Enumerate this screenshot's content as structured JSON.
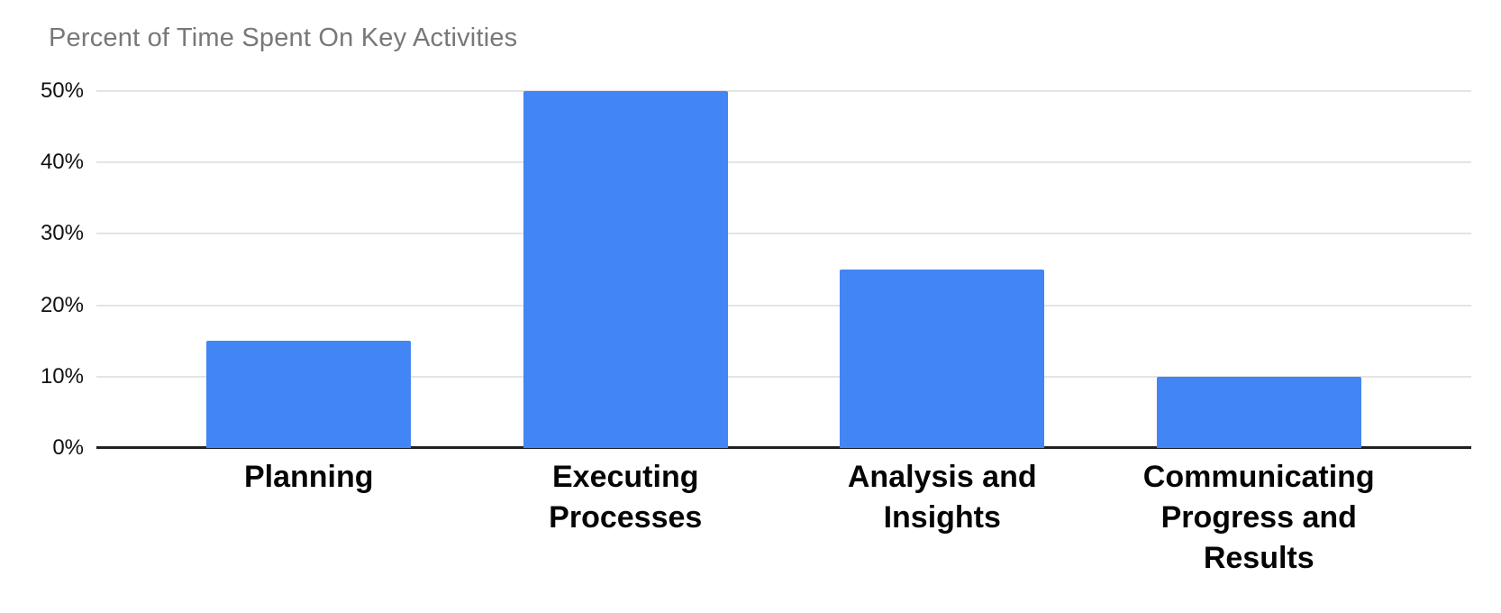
{
  "chart_data": {
    "type": "bar",
    "title": "Percent of Time Spent On Key Activities",
    "categories": [
      "Planning",
      "Executing Processes",
      "Analysis and Insights",
      "Communicating Progress and Results"
    ],
    "values": [
      15,
      50,
      25,
      10
    ],
    "xlabel": "",
    "ylabel": "",
    "ylim": [
      0,
      50
    ],
    "yticks": [
      "0%",
      "10%",
      "20%",
      "30%",
      "40%",
      "50%"
    ],
    "grid": "horizontal",
    "legend": "none",
    "colors": {
      "bar": "#4285f4",
      "title_text": "#787878",
      "tick_text": "#111111",
      "category_text": "#050505",
      "gridline": "#e4e4e4",
      "axis_line": "#212121",
      "background": "#ffffff"
    }
  }
}
